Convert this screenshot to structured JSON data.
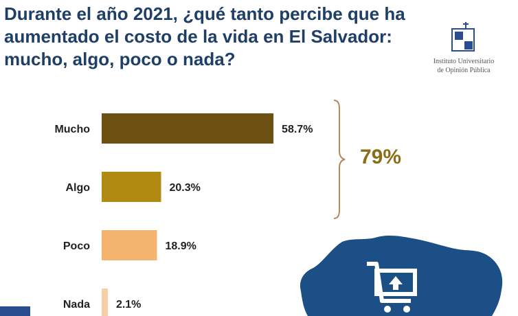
{
  "title": {
    "line1": "Durante el año 2021, ¿qué tanto percibe que ha",
    "line2": "aumentado el costo de la vida en El Salvador:",
    "line3": "mucho, algo, poco o nada?"
  },
  "logo": {
    "line1": "Instituto Universitario",
    "line2": "de Opinión Pública",
    "icon": "iudop-logo-icon"
  },
  "summary": {
    "value": "79%",
    "color": "#8a6d16"
  },
  "colors": {
    "title": "#1f3f66",
    "map": "#1c4f86",
    "cart": "#ffffff"
  },
  "chart_data": {
    "type": "bar",
    "orientation": "horizontal",
    "categories": [
      "Mucho",
      "Algo",
      "Poco",
      "Nada"
    ],
    "values": [
      58.7,
      20.3,
      18.9,
      2.1
    ],
    "value_labels": [
      "58.7%",
      "20.3%",
      "18.9%",
      "2.1%"
    ],
    "colors": [
      "#6b5012",
      "#b08a12",
      "#f4b46e",
      "#f6cfa6"
    ],
    "xlim": [
      0,
      100
    ],
    "grid": false,
    "bracket": {
      "covers": [
        "Mucho",
        "Algo"
      ],
      "label": "79%"
    }
  }
}
